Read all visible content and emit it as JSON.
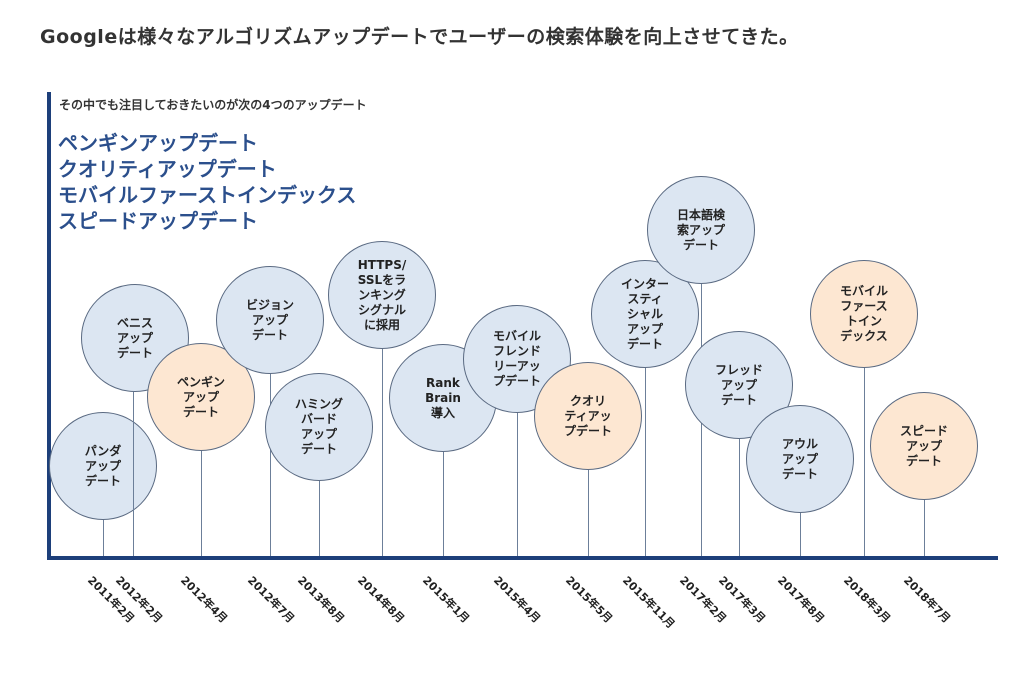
{
  "headline": "Googleは様々なアルゴリズムアップデートでユーザーの検索体験を向上させてきた。",
  "intro": "その中でも注目しておきたいのが次の4つのアップデート",
  "highlights": [
    "ペンギンアップデート",
    "クオリティアップデート",
    "モバイルファーストインデックス",
    "スピードアップデート"
  ],
  "colors": {
    "axis": "#1d3f7a",
    "bubble_blue": "#dce6f2",
    "bubble_orange": "#fde7d2",
    "highlight_text": "#2b4f8c"
  },
  "updates": [
    {
      "name": "パンダ\nアップ\nデート",
      "date": "2011年2月",
      "highlight": false
    },
    {
      "name": "ベニス\nアップ\nデート",
      "date": "2012年2月",
      "highlight": false
    },
    {
      "name": "ペンギン\nアップ\nデート",
      "date": "2012年4月",
      "highlight": true
    },
    {
      "name": "ビジョン\nアップ\nデート",
      "date": "2012年7月",
      "highlight": false
    },
    {
      "name": "ハミング\nバード\nアップ\nデート",
      "date": "2013年8月",
      "highlight": false
    },
    {
      "name": "HTTPS/\nSSLをラ\nンキング\nシグナル\nに採用",
      "date": "2014年8月",
      "highlight": false
    },
    {
      "name": "Rank\nBrain\n導入",
      "date": "2015年1月",
      "highlight": false
    },
    {
      "name": "モバイル\nフレンド\nリーアッ\nプデート",
      "date": "2015年4月",
      "highlight": false
    },
    {
      "name": "クオリ\nティアッ\nプデート",
      "date": "2015年5月",
      "highlight": true
    },
    {
      "name": "インター\nスティ\nシャル\nアップ\nデート",
      "date": "2015年11月",
      "highlight": false
    },
    {
      "name": "日本語検\n索アップ\nデート",
      "date": "2017年2月",
      "highlight": false
    },
    {
      "name": "フレッド\nアップ\nデート",
      "date": "2017年3月",
      "highlight": false
    },
    {
      "name": "アウル\nアップ\nデート",
      "date": "2017年8月",
      "highlight": false
    },
    {
      "name": "モバイル\nファース\nトイン\nデックス",
      "date": "2018年3月",
      "highlight": true
    },
    {
      "name": "スピード\nアップ\nデート",
      "date": "2018年7月",
      "highlight": true
    }
  ]
}
